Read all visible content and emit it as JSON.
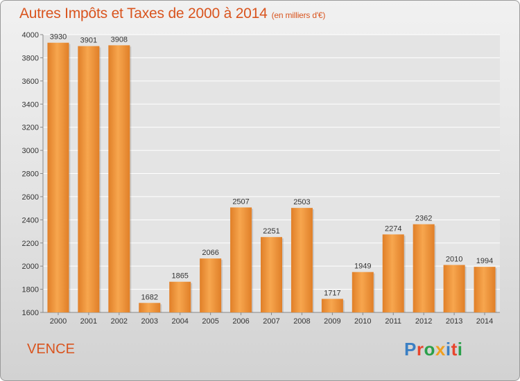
{
  "header": {
    "title": "Autres Impôts et Taxes de 2000 à 2014",
    "subtitle": "(en milliers d'€)"
  },
  "footer": {
    "place": "VENCE",
    "logo": "Proxiti",
    "logo_colors": [
      "#3a7fc4",
      "#e8452c",
      "#2aa04a",
      "#f0a020",
      "#3a7fc4",
      "#e8452c",
      "#2aa04a"
    ]
  },
  "colors": {
    "accent": "#d9541e",
    "bar_light": "#f7a64e",
    "bar_dark": "#e07f28"
  },
  "chart_data": {
    "type": "bar",
    "title": "Autres Impôts et Taxes de 2000 à 2014",
    "subtitle": "(en milliers d'€)",
    "categories": [
      "2000",
      "2001",
      "2002",
      "2003",
      "2004",
      "2005",
      "2006",
      "2007",
      "2008",
      "2009",
      "2010",
      "2011",
      "2012",
      "2013",
      "2014"
    ],
    "values": [
      3930,
      3901,
      3908,
      1682,
      1865,
      2066,
      2507,
      2251,
      2503,
      1717,
      1949,
      2274,
      2362,
      2010,
      1994
    ],
    "ylim": [
      1600,
      4000
    ],
    "yticks": [
      1600,
      1800,
      2000,
      2200,
      2400,
      2600,
      2800,
      3000,
      3200,
      3400,
      3600,
      3800,
      4000
    ],
    "grid": true,
    "data_labels": true
  }
}
